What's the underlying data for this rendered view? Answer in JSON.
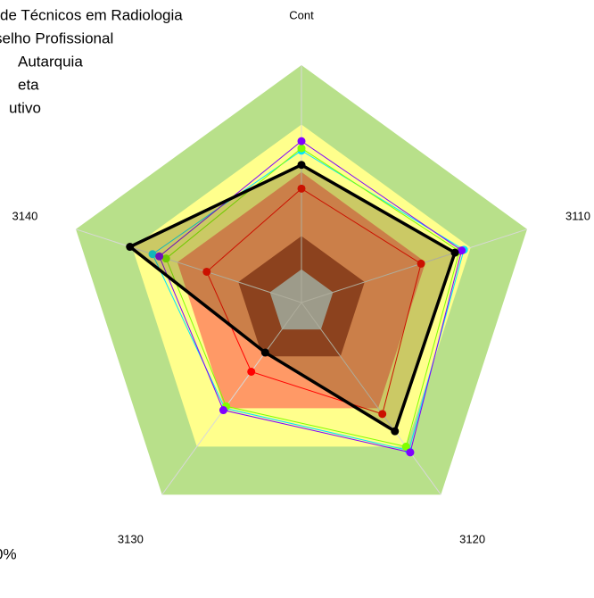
{
  "chart_data": {
    "type": "radar",
    "categories": [
      "Cont",
      "3110",
      "3120",
      "3130",
      "3140"
    ],
    "ylim": [
      0,
      100
    ],
    "bands": [
      {
        "value": 100,
        "color": "#b8e08a"
      },
      {
        "value": 75,
        "color": "#ffff8c"
      },
      {
        "value": 55,
        "color": "#ff9966"
      },
      {
        "value": 28,
        "color": "#a8442a"
      },
      {
        "value": 14,
        "color": "#c0c0c0"
      }
    ],
    "series": [
      {
        "name": "de Técnicos em Radiologia",
        "color": "#00e5ff",
        "values": [
          64,
          72,
          77,
          55,
          66
        ]
      },
      {
        "name": "selho Profissional",
        "color": "#80ff00",
        "values": [
          65,
          70,
          75,
          54,
          60
        ]
      },
      {
        "name": "Autarquia",
        "color": "#8000ff",
        "values": [
          68,
          71,
          78,
          56,
          63
        ]
      },
      {
        "name": "eta",
        "color": "#ff0000",
        "values": [
          48,
          53,
          58,
          36,
          42
        ]
      },
      {
        "name": "utivo",
        "color": "#000000",
        "values": [
          58,
          68,
          67,
          26,
          76
        ]
      }
    ],
    "footnote": "0%"
  }
}
